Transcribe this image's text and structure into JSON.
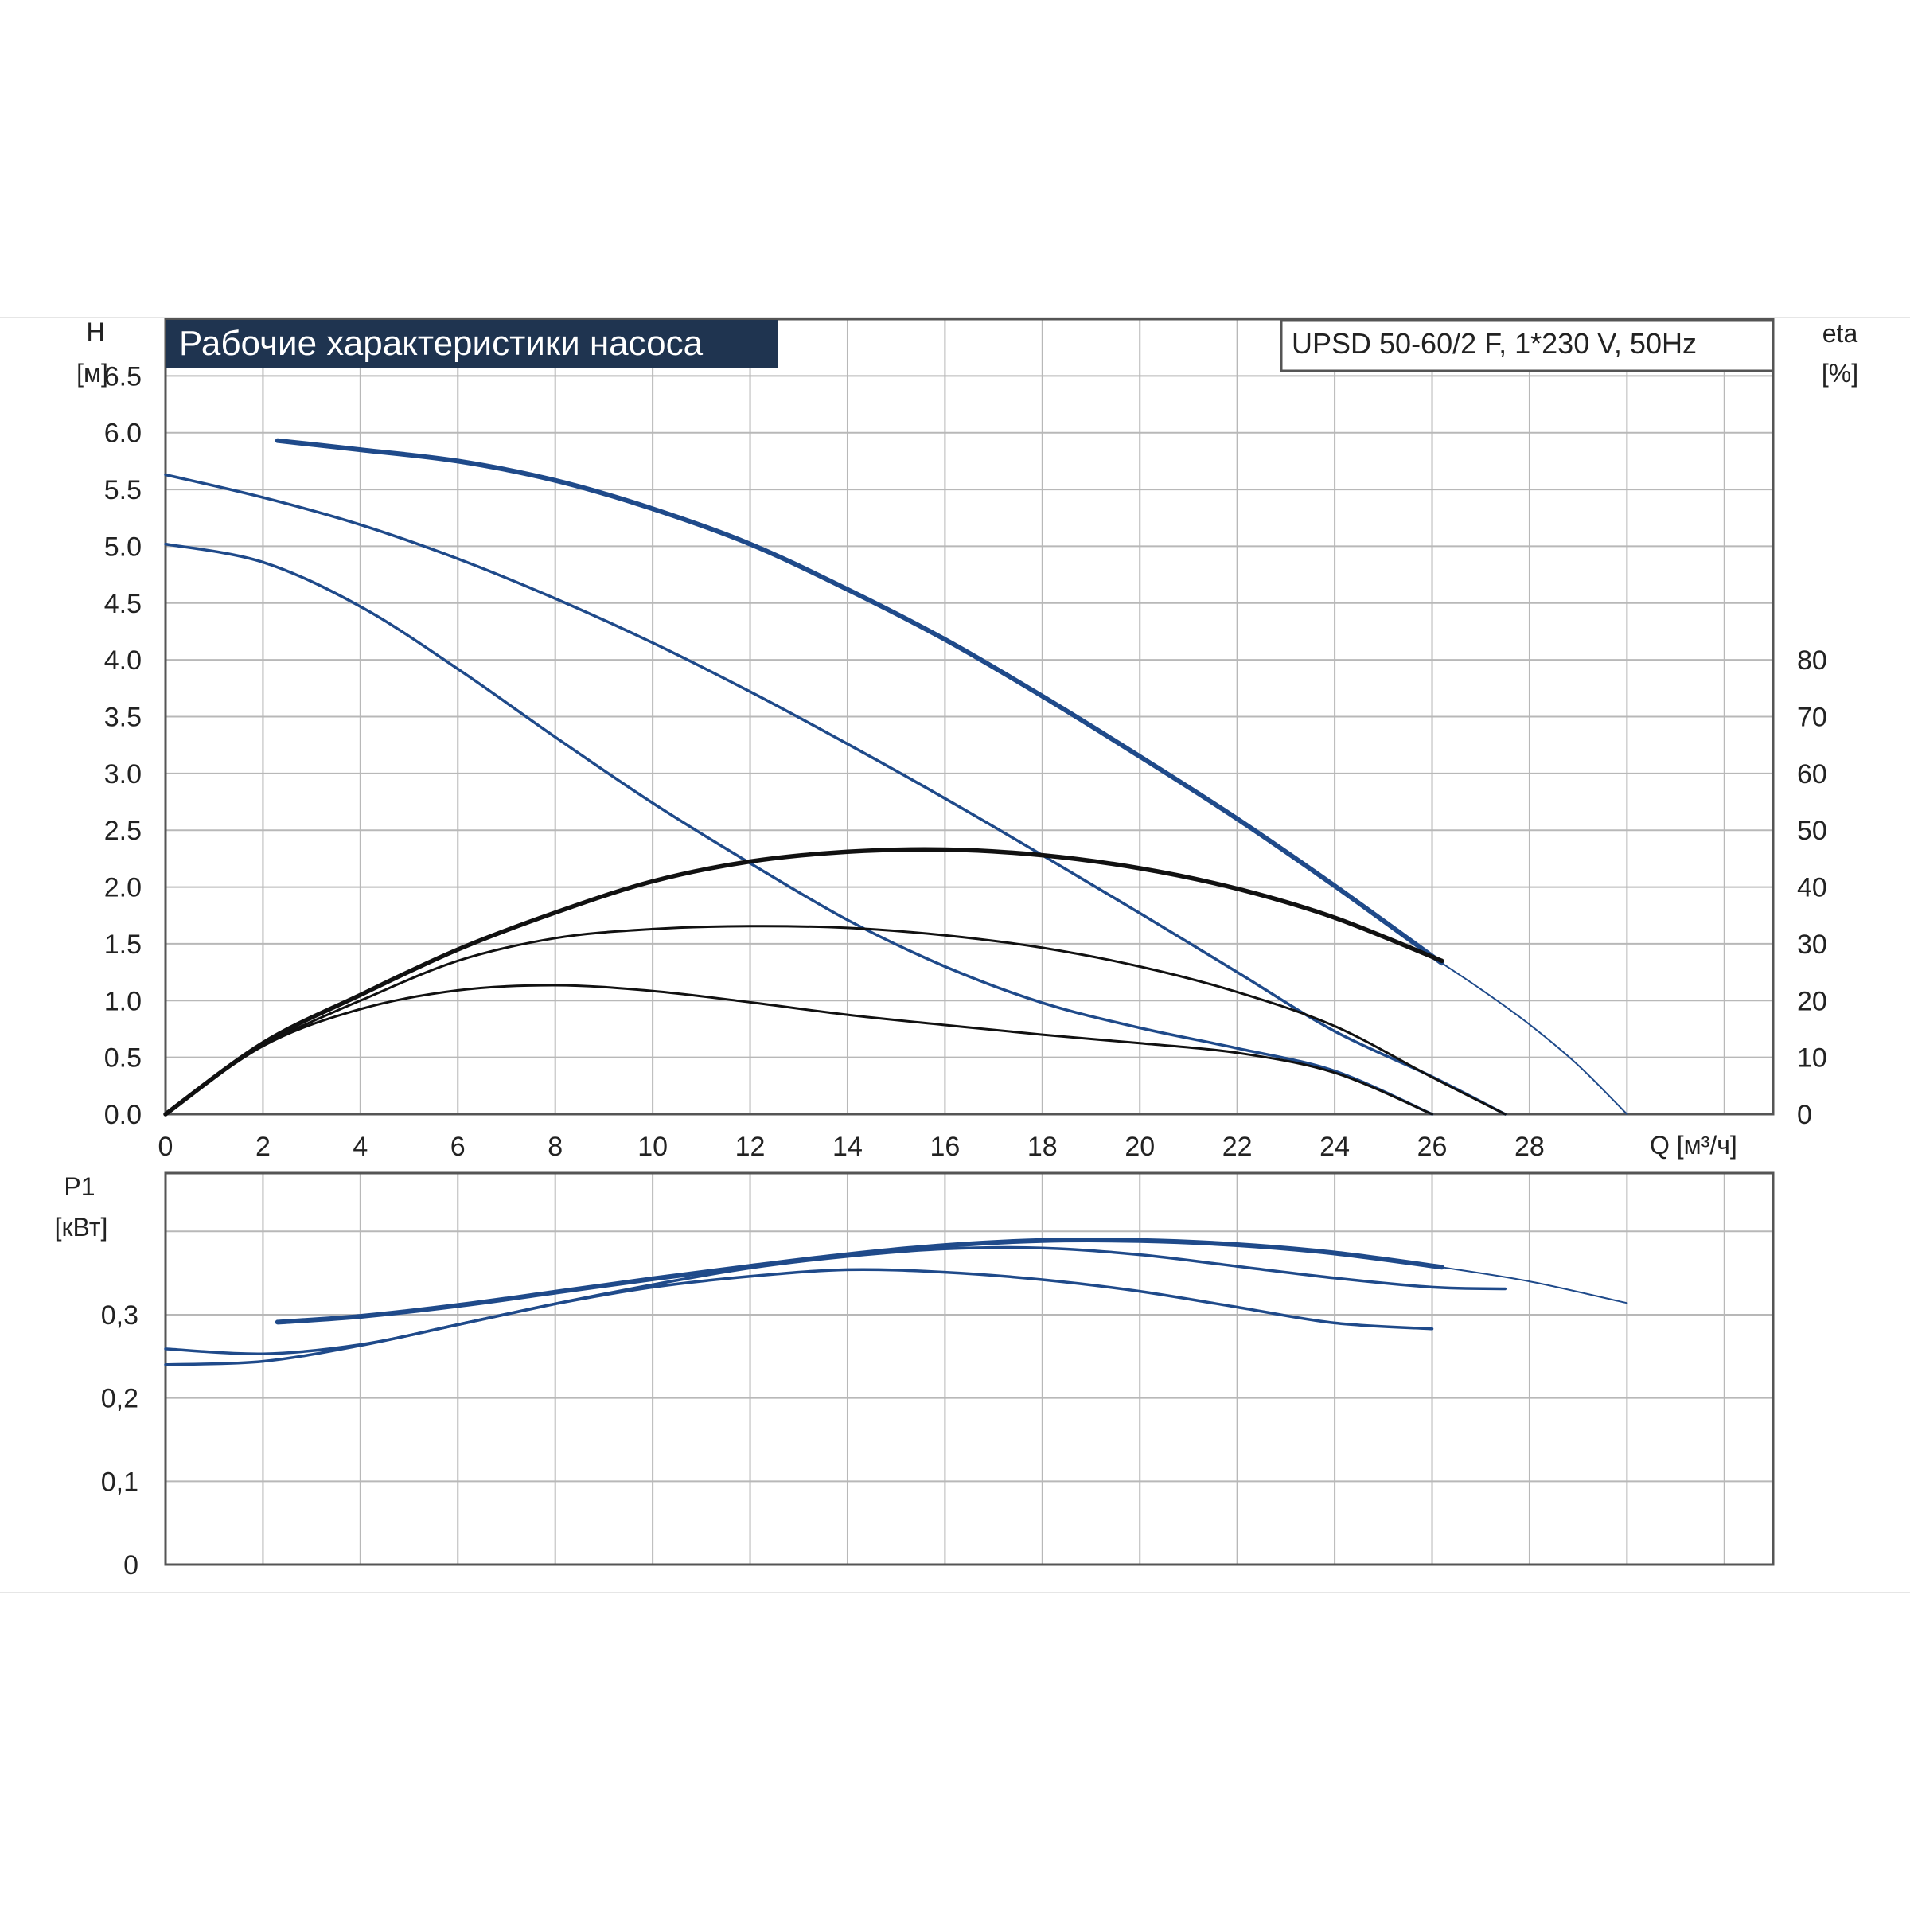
{
  "colors": {
    "pump": "#1f4a8a",
    "efficiency": "#111111",
    "title_bg": "#1f3450",
    "grid": "#b8b8b8"
  },
  "chart_data": [
    {
      "type": "line",
      "title": "Рабочие характеристики насоса",
      "subtitle": "UPSD 50-60/2 F, 1*230 V, 50Hz",
      "y_label": [
        "H",
        "[м]"
      ],
      "y2_label": [
        "eta",
        "[%]"
      ],
      "x_label": "Q [м³/ч]",
      "x_ticks": [
        "0",
        "2",
        "4",
        "6",
        "8",
        "10",
        "12",
        "14",
        "16",
        "18",
        "20",
        "22",
        "24",
        "26",
        "28"
      ],
      "y_ticks": [
        "0.0",
        "0.5",
        "1.0",
        "1.5",
        "2.0",
        "2.5",
        "3.0",
        "3.5",
        "4.0",
        "4.5",
        "5.0",
        "5.5",
        "6.0",
        "6.5"
      ],
      "y2_ticks": [
        "0",
        "10",
        "20",
        "30",
        "40",
        "50",
        "60",
        "70",
        "80"
      ],
      "xlim": [
        0,
        33
      ],
      "ylim": [
        0,
        7.0
      ],
      "y2lim": [
        0,
        140
      ],
      "grid": true,
      "series": [
        {
          "axis": "H",
          "role": "pump",
          "points": [
            [
              2.3,
              5.93
            ],
            [
              4,
              5.85
            ],
            [
              6,
              5.75
            ],
            [
              8,
              5.58
            ],
            [
              10,
              5.33
            ],
            [
              12,
              5.02
            ],
            [
              14,
              4.62
            ],
            [
              16,
              4.18
            ],
            [
              18,
              3.68
            ],
            [
              20,
              3.15
            ],
            [
              22,
              2.6
            ],
            [
              24,
              2.01
            ],
            [
              26.2,
              1.33
            ]
          ]
        },
        {
          "axis": "H",
          "role": "pump-extension",
          "points": [
            [
              26.2,
              1.33
            ],
            [
              27,
              1.1
            ],
            [
              28,
              0.79
            ],
            [
              29,
              0.43
            ],
            [
              30,
              0.0
            ]
          ]
        },
        {
          "axis": "H",
          "role": "pump",
          "points": [
            [
              0,
              5.63
            ],
            [
              2,
              5.43
            ],
            [
              4,
              5.19
            ],
            [
              6,
              4.89
            ],
            [
              8,
              4.54
            ],
            [
              10,
              4.15
            ],
            [
              12,
              3.72
            ],
            [
              14,
              3.26
            ],
            [
              16,
              2.78
            ],
            [
              18,
              2.28
            ],
            [
              20,
              1.77
            ],
            [
              22,
              1.25
            ],
            [
              24,
              0.73
            ],
            [
              26,
              0.33
            ],
            [
              27.5,
              0.0
            ]
          ]
        },
        {
          "axis": "H",
          "role": "pump",
          "points": [
            [
              0,
              5.02
            ],
            [
              2,
              4.86
            ],
            [
              4,
              4.47
            ],
            [
              6,
              3.92
            ],
            [
              8,
              3.32
            ],
            [
              10,
              2.74
            ],
            [
              12,
              2.21
            ],
            [
              14,
              1.71
            ],
            [
              16,
              1.3
            ],
            [
              18,
              0.98
            ],
            [
              20,
              0.76
            ],
            [
              22,
              0.58
            ],
            [
              24,
              0.38
            ],
            [
              26,
              0.0
            ]
          ]
        },
        {
          "axis": "eta",
          "role": "efficiency",
          "points": [
            [
              0,
              0
            ],
            [
              2,
              12.5
            ],
            [
              4,
              21
            ],
            [
              6,
              29
            ],
            [
              8,
              35.5
            ],
            [
              10,
              41
            ],
            [
              12,
              44.5
            ],
            [
              14,
              46.2
            ],
            [
              16,
              46.6
            ],
            [
              18,
              45.6
            ],
            [
              20,
              43.3
            ],
            [
              22,
              39.7
            ],
            [
              24,
              34.6
            ],
            [
              26.2,
              27
            ]
          ]
        },
        {
          "axis": "eta",
          "role": "efficiency",
          "points": [
            [
              2,
              12.5
            ],
            [
              4,
              20
            ],
            [
              6,
              27
            ],
            [
              8,
              31
            ],
            [
              10,
              32.6
            ],
            [
              12,
              33.1
            ],
            [
              14,
              32.8
            ],
            [
              16,
              31.5
            ],
            [
              18,
              29.3
            ],
            [
              20,
              26
            ],
            [
              22,
              21.5
            ],
            [
              24,
              15.5
            ],
            [
              26,
              6.5
            ],
            [
              27.5,
              0
            ]
          ]
        },
        {
          "axis": "eta",
          "role": "efficiency",
          "points": [
            [
              0,
              0
            ],
            [
              2,
              12
            ],
            [
              4,
              18.5
            ],
            [
              6,
              21.8
            ],
            [
              8,
              22.7
            ],
            [
              10,
              21.7
            ],
            [
              12,
              19.7
            ],
            [
              14,
              17.5
            ],
            [
              16,
              15.7
            ],
            [
              18,
              14
            ],
            [
              20,
              12.5
            ],
            [
              22,
              10.8
            ],
            [
              24,
              7.3
            ],
            [
              26,
              0
            ]
          ]
        }
      ]
    },
    {
      "type": "line",
      "y_label": [
        "P1",
        "[кВт]"
      ],
      "y_ticks": [
        "0",
        "0,1",
        "0,2",
        "0,3"
      ],
      "xlim": [
        0,
        33
      ],
      "ylim": [
        0,
        0.47
      ],
      "grid": true,
      "series": [
        {
          "role": "power",
          "points": [
            [
              2.3,
              0.291
            ],
            [
              4,
              0.298
            ],
            [
              6,
              0.311
            ],
            [
              8,
              0.327
            ],
            [
              10,
              0.343
            ],
            [
              12,
              0.358
            ],
            [
              14,
              0.372
            ],
            [
              16,
              0.383
            ],
            [
              18,
              0.389
            ],
            [
              20,
              0.389
            ],
            [
              22,
              0.384
            ],
            [
              24,
              0.374
            ],
            [
              26.2,
              0.357
            ]
          ]
        },
        {
          "role": "power-extension",
          "points": [
            [
              26.2,
              0.357
            ],
            [
              28,
              0.34
            ],
            [
              30,
              0.314
            ]
          ]
        },
        {
          "role": "power",
          "points": [
            [
              0,
              0.259
            ],
            [
              2,
              0.253
            ],
            [
              4,
              0.264
            ],
            [
              6,
              0.288
            ],
            [
              8,
              0.313
            ],
            [
              10,
              0.336
            ],
            [
              12,
              0.356
            ],
            [
              14,
              0.37
            ],
            [
              16,
              0.379
            ],
            [
              18,
              0.38
            ],
            [
              20,
              0.372
            ],
            [
              22,
              0.358
            ],
            [
              24,
              0.344
            ],
            [
              26,
              0.333
            ],
            [
              27.5,
              0.331
            ]
          ]
        },
        {
          "role": "power",
          "points": [
            [
              0,
              0.24
            ],
            [
              2,
              0.244
            ],
            [
              4,
              0.263
            ],
            [
              6,
              0.288
            ],
            [
              8,
              0.313
            ],
            [
              10,
              0.333
            ],
            [
              12,
              0.346
            ],
            [
              14,
              0.354
            ],
            [
              16,
              0.351
            ],
            [
              18,
              0.342
            ],
            [
              20,
              0.328
            ],
            [
              22,
              0.309
            ],
            [
              24,
              0.29
            ],
            [
              26,
              0.283
            ]
          ]
        }
      ]
    }
  ]
}
